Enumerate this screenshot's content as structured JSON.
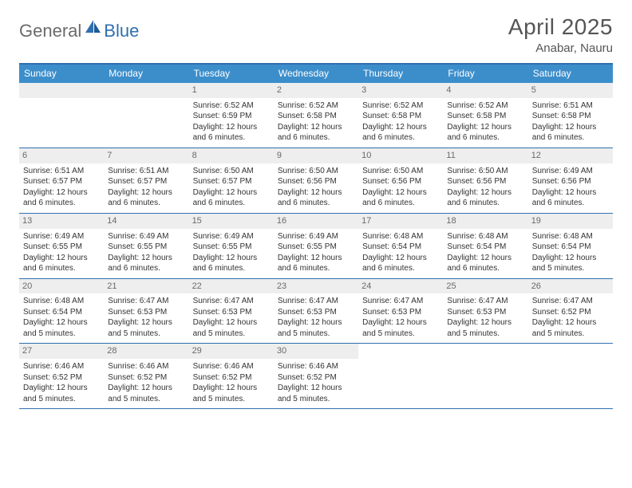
{
  "brand": {
    "general": "General",
    "blue": "Blue",
    "logo_color": "#2f6fb0",
    "logo_secondary": "#1e5a94"
  },
  "title": {
    "month_year": "April 2025",
    "location": "Anabar, Nauru"
  },
  "colors": {
    "header_bar": "#3c8ecb",
    "week_border": "#2f6fb0",
    "daynum_bg": "#eeeeee",
    "daynum_text": "#6a6a6a",
    "body_text": "#333333",
    "title_text": "#555555",
    "logo_gray": "#6b6b6b"
  },
  "weekdays": [
    "Sunday",
    "Monday",
    "Tuesday",
    "Wednesday",
    "Thursday",
    "Friday",
    "Saturday"
  ],
  "fonts": {
    "title_size": 28,
    "location_size": 15,
    "weekday_size": 12,
    "daynum_size": 11,
    "body_size": 10
  },
  "layout": {
    "start_weekday_index": 2,
    "days_in_month": 30
  },
  "days": [
    {
      "n": 1,
      "sunrise": "6:52 AM",
      "sunset": "6:59 PM",
      "daylight": "12 hours and 6 minutes."
    },
    {
      "n": 2,
      "sunrise": "6:52 AM",
      "sunset": "6:58 PM",
      "daylight": "12 hours and 6 minutes."
    },
    {
      "n": 3,
      "sunrise": "6:52 AM",
      "sunset": "6:58 PM",
      "daylight": "12 hours and 6 minutes."
    },
    {
      "n": 4,
      "sunrise": "6:52 AM",
      "sunset": "6:58 PM",
      "daylight": "12 hours and 6 minutes."
    },
    {
      "n": 5,
      "sunrise": "6:51 AM",
      "sunset": "6:58 PM",
      "daylight": "12 hours and 6 minutes."
    },
    {
      "n": 6,
      "sunrise": "6:51 AM",
      "sunset": "6:57 PM",
      "daylight": "12 hours and 6 minutes."
    },
    {
      "n": 7,
      "sunrise": "6:51 AM",
      "sunset": "6:57 PM",
      "daylight": "12 hours and 6 minutes."
    },
    {
      "n": 8,
      "sunrise": "6:50 AM",
      "sunset": "6:57 PM",
      "daylight": "12 hours and 6 minutes."
    },
    {
      "n": 9,
      "sunrise": "6:50 AM",
      "sunset": "6:56 PM",
      "daylight": "12 hours and 6 minutes."
    },
    {
      "n": 10,
      "sunrise": "6:50 AM",
      "sunset": "6:56 PM",
      "daylight": "12 hours and 6 minutes."
    },
    {
      "n": 11,
      "sunrise": "6:50 AM",
      "sunset": "6:56 PM",
      "daylight": "12 hours and 6 minutes."
    },
    {
      "n": 12,
      "sunrise": "6:49 AM",
      "sunset": "6:56 PM",
      "daylight": "12 hours and 6 minutes."
    },
    {
      "n": 13,
      "sunrise": "6:49 AM",
      "sunset": "6:55 PM",
      "daylight": "12 hours and 6 minutes."
    },
    {
      "n": 14,
      "sunrise": "6:49 AM",
      "sunset": "6:55 PM",
      "daylight": "12 hours and 6 minutes."
    },
    {
      "n": 15,
      "sunrise": "6:49 AM",
      "sunset": "6:55 PM",
      "daylight": "12 hours and 6 minutes."
    },
    {
      "n": 16,
      "sunrise": "6:49 AM",
      "sunset": "6:55 PM",
      "daylight": "12 hours and 6 minutes."
    },
    {
      "n": 17,
      "sunrise": "6:48 AM",
      "sunset": "6:54 PM",
      "daylight": "12 hours and 6 minutes."
    },
    {
      "n": 18,
      "sunrise": "6:48 AM",
      "sunset": "6:54 PM",
      "daylight": "12 hours and 6 minutes."
    },
    {
      "n": 19,
      "sunrise": "6:48 AM",
      "sunset": "6:54 PM",
      "daylight": "12 hours and 5 minutes."
    },
    {
      "n": 20,
      "sunrise": "6:48 AM",
      "sunset": "6:54 PM",
      "daylight": "12 hours and 5 minutes."
    },
    {
      "n": 21,
      "sunrise": "6:47 AM",
      "sunset": "6:53 PM",
      "daylight": "12 hours and 5 minutes."
    },
    {
      "n": 22,
      "sunrise": "6:47 AM",
      "sunset": "6:53 PM",
      "daylight": "12 hours and 5 minutes."
    },
    {
      "n": 23,
      "sunrise": "6:47 AM",
      "sunset": "6:53 PM",
      "daylight": "12 hours and 5 minutes."
    },
    {
      "n": 24,
      "sunrise": "6:47 AM",
      "sunset": "6:53 PM",
      "daylight": "12 hours and 5 minutes."
    },
    {
      "n": 25,
      "sunrise": "6:47 AM",
      "sunset": "6:53 PM",
      "daylight": "12 hours and 5 minutes."
    },
    {
      "n": 26,
      "sunrise": "6:47 AM",
      "sunset": "6:52 PM",
      "daylight": "12 hours and 5 minutes."
    },
    {
      "n": 27,
      "sunrise": "6:46 AM",
      "sunset": "6:52 PM",
      "daylight": "12 hours and 5 minutes."
    },
    {
      "n": 28,
      "sunrise": "6:46 AM",
      "sunset": "6:52 PM",
      "daylight": "12 hours and 5 minutes."
    },
    {
      "n": 29,
      "sunrise": "6:46 AM",
      "sunset": "6:52 PM",
      "daylight": "12 hours and 5 minutes."
    },
    {
      "n": 30,
      "sunrise": "6:46 AM",
      "sunset": "6:52 PM",
      "daylight": "12 hours and 5 minutes."
    }
  ],
  "labels": {
    "sunrise": "Sunrise:",
    "sunset": "Sunset:",
    "daylight": "Daylight:"
  }
}
